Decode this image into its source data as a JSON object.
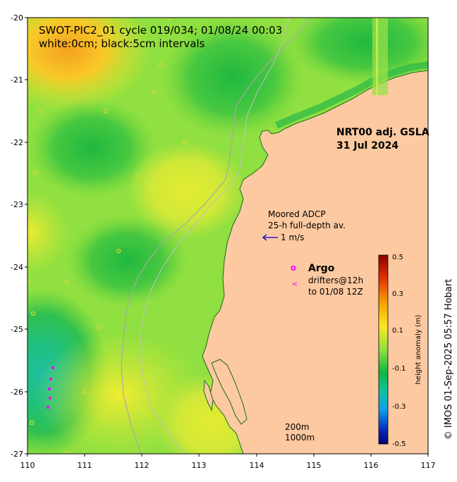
{
  "map": {
    "title_line1": "SWOT-PIC2_01 cycle 019/034; 01/08/24 00:03",
    "title_line2": "white:0cm; black:5cm intervals",
    "product_line1": "NRT00 adj. GSLA",
    "product_line2": "31 Jul 2024",
    "adcp_line1": "Moored ADCP",
    "adcp_line2": "25-h full-depth av.",
    "adcp_scale": "1 m/s",
    "argo_label": "Argo",
    "argo_symbol": "o",
    "drifter_symbol": "<",
    "drifter_line1": "drifters@12h",
    "drifter_line2": "to 01/08 12Z",
    "contour_200": "200m",
    "contour_1000": "1000m",
    "credit": "© IMOS 01-Sep-2025 05:57 Hobart",
    "lat_ticks": [
      "-20",
      "-21",
      "-22",
      "-23",
      "-24",
      "-25",
      "-26",
      "-27"
    ],
    "lon_ticks": [
      "110",
      "111",
      "112",
      "113",
      "114",
      "115",
      "116",
      "117"
    ],
    "colors": {
      "land": "#fcc9a0",
      "ocean_base": "#8fe040",
      "argo": "#ff00ff",
      "adcp_arrow": "#0000cc"
    }
  },
  "colorbar": {
    "label": "height anomaly (m)",
    "ticks": [
      "0.5",
      "0.3",
      "0.1",
      "-0.1",
      "-0.3",
      "-0.5"
    ]
  }
}
